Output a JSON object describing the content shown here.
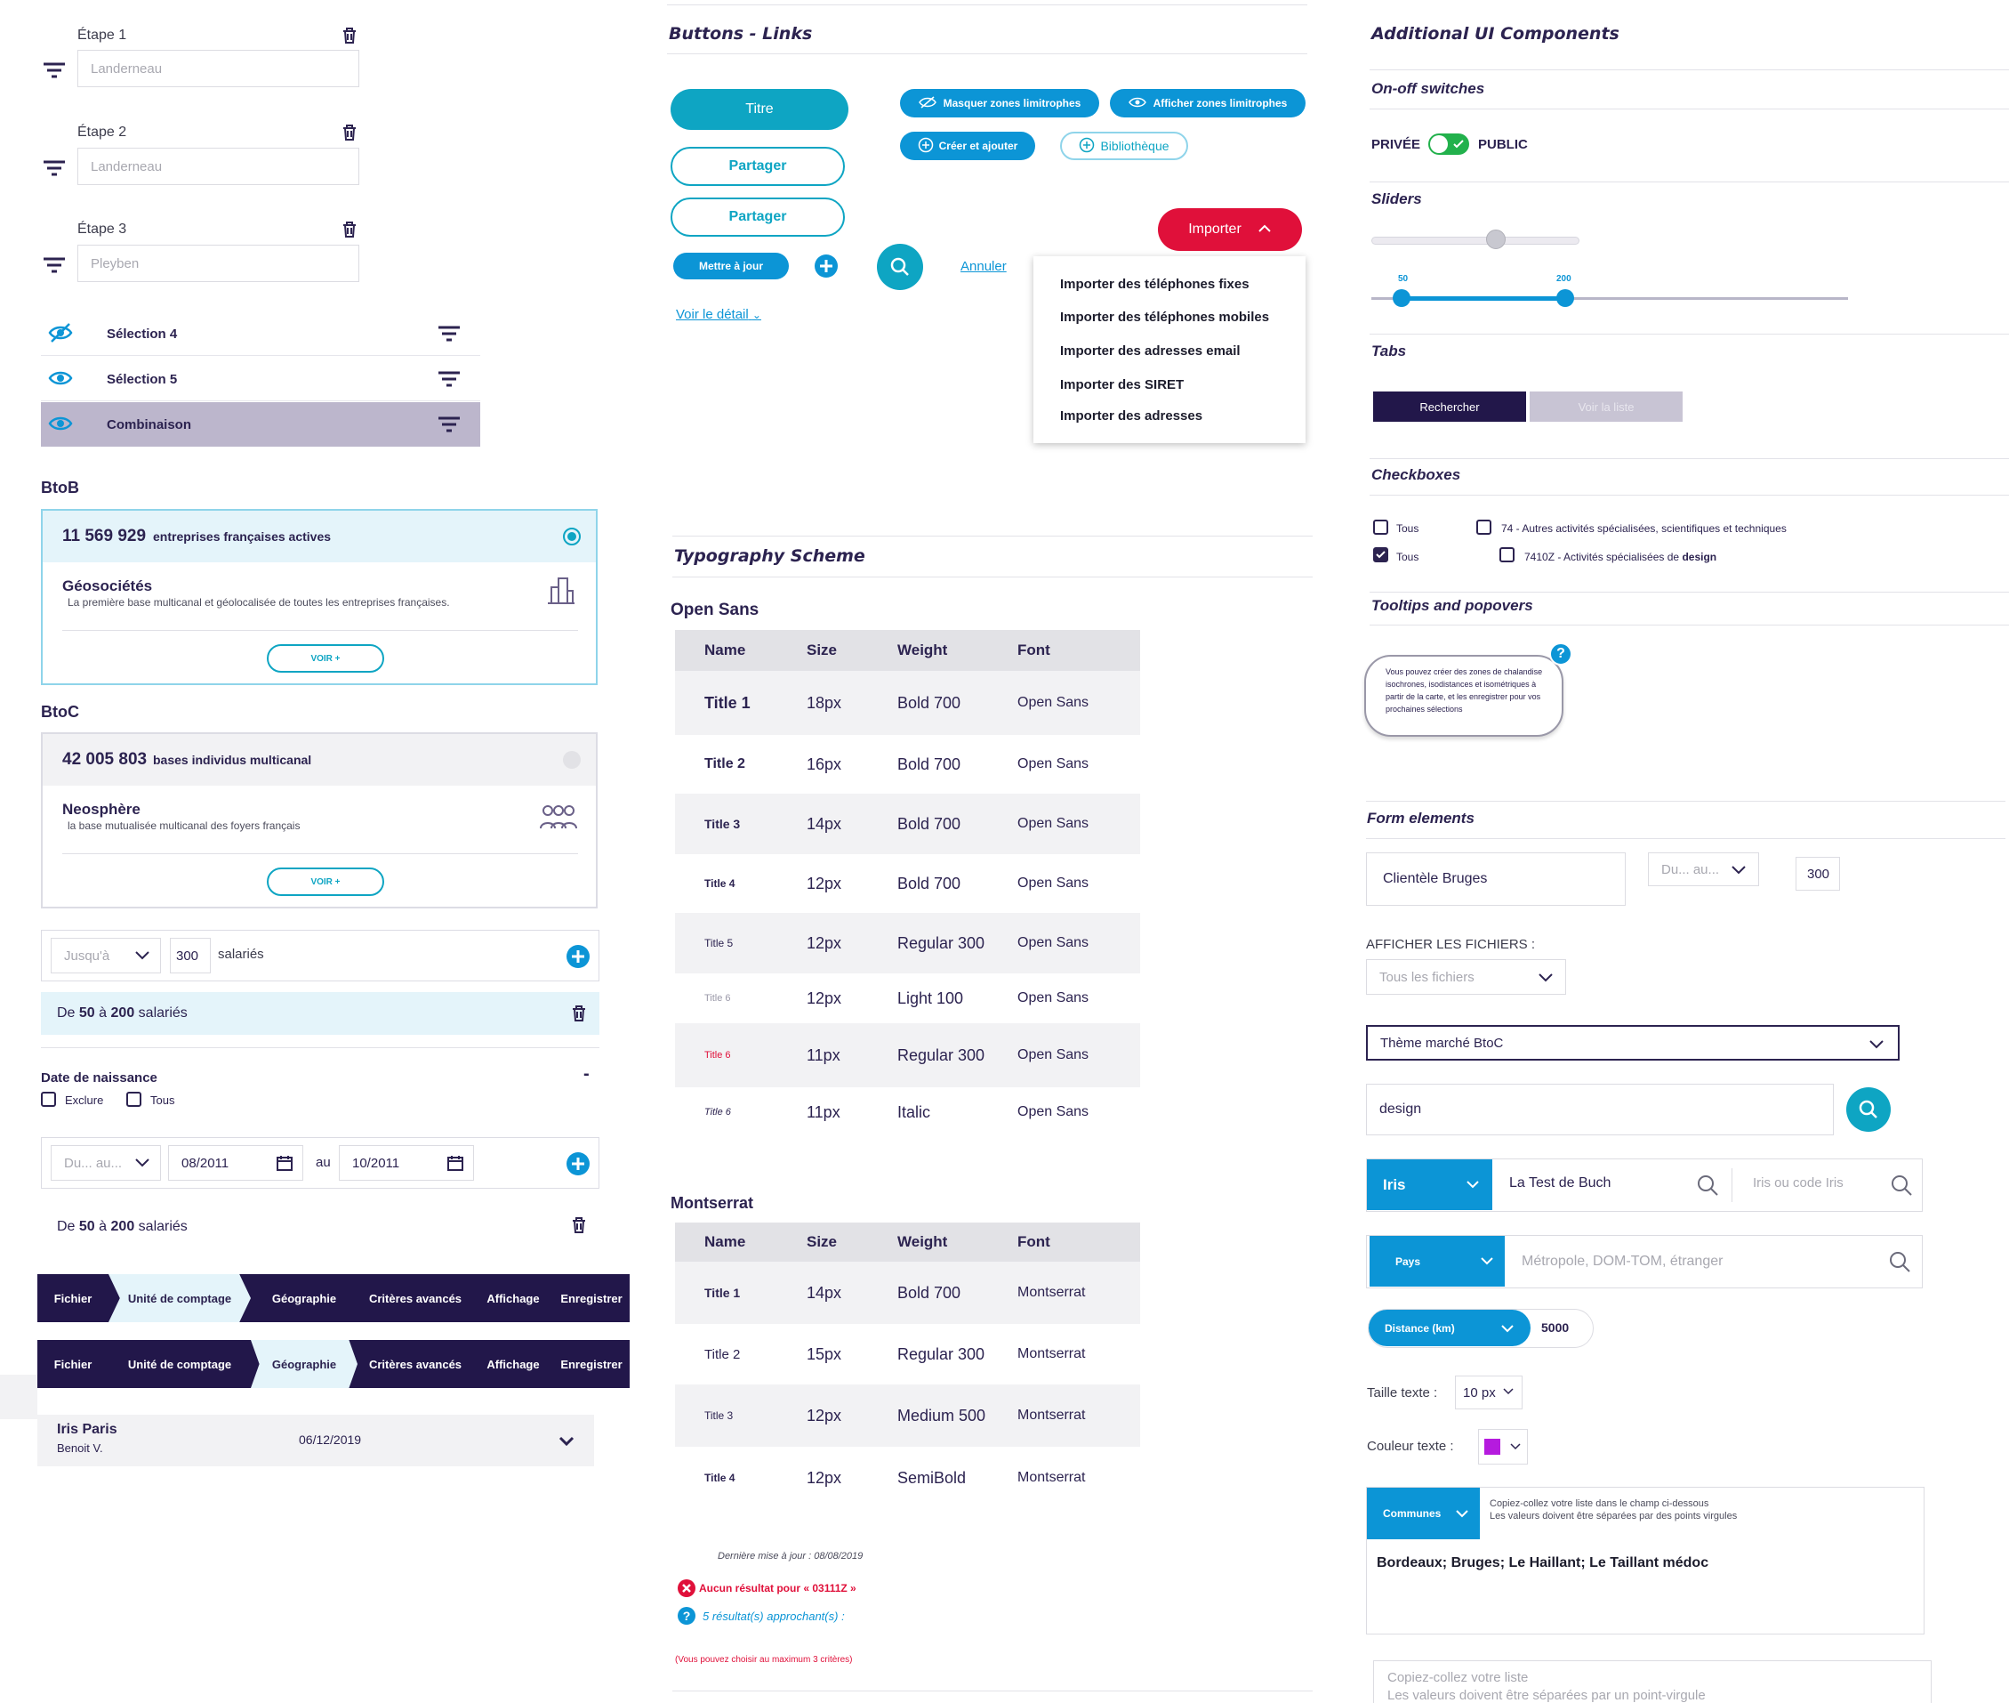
{
  "colors": {
    "navy": "#2c2350",
    "teal": "#0ea5c3",
    "blue": "#0c95d6",
    "red": "#e0103a",
    "lilac": "#bcb6cc",
    "purple_swatch": "#b51bde"
  },
  "left": {
    "steps": [
      {
        "label": "Étape 1",
        "value": "Landerneau"
      },
      {
        "label": "Étape 2",
        "value": "Landerneau"
      },
      {
        "label": "Étape 3",
        "value": "Pleyben"
      }
    ],
    "selections": [
      {
        "label": "Sélection 4",
        "icon": "eye-off-icon"
      },
      {
        "label": "Sélection 5",
        "icon": "eye-icon"
      },
      {
        "label": "Combinaison",
        "icon": "eye-icon"
      }
    ],
    "btob": {
      "heading": "BtoB",
      "count": "11 569 929",
      "count_label": "entreprises françaises actives",
      "name": "Géosociétés",
      "desc": "La première base multicanal et géolocalisée de toutes les entreprises françaises.",
      "button": "VOIR +"
    },
    "btoc": {
      "heading": "BtoC",
      "count": "42 005 803",
      "count_label": "bases individus multicanal",
      "name": "Neosphère",
      "desc": "la base mutualisée multicanal des foyers français",
      "button": "VOIR +"
    },
    "employees": {
      "select": "Jusqu'à",
      "value": "300",
      "unit": "salariés",
      "result_pre": "De",
      "result_a": "50",
      "result_mid": "à",
      "result_b": "200",
      "result_post": "salariés"
    },
    "birth": {
      "title": "Date de naissance",
      "minus": "-",
      "exclude": "Exclure",
      "all": "Tous",
      "select": "Du... au...",
      "from": "08/2011",
      "au": "au",
      "to": "10/2011",
      "result_pre": "De",
      "result_a": "50",
      "result_mid": "à",
      "result_b": "200",
      "result_post": "salariés"
    },
    "stepper": [
      "Fichier",
      "Unité de comptage",
      "Géographie",
      "Critères avancés",
      "Affichage",
      "Enregistrer"
    ],
    "iris": {
      "name": "Iris Paris",
      "author": "Benoit V.",
      "date": "06/12/2019"
    }
  },
  "mid": {
    "heading": "Buttons - Links",
    "btn_title": "Titre",
    "btn_share1": "Partager",
    "btn_share2": "Partager",
    "btn_update": "Mettre à jour",
    "btn_hide_zones": "Masquer zones limitrophes",
    "btn_show_zones": "Afficher zones limitrophes",
    "btn_create": "Créer et ajouter",
    "btn_library": "Bibliothèque",
    "link_cancel": "Annuler",
    "link_detail": "Voir le détail",
    "btn_import": "Importer",
    "import_menu": [
      "Importer des téléphones fixes",
      "Importer des téléphones mobiles",
      "Importer des adresses email",
      "Importer des SIRET",
      "Importer des adresses"
    ],
    "typo_heading": "Typography Scheme",
    "opensans_heading": "Open Sans",
    "montserrat_heading": "Montserrat",
    "cols": [
      "Name",
      "Size",
      "Weight",
      "Font"
    ],
    "opensans_rows": [
      [
        "Title 1",
        "18px",
        "Bold 700",
        "Open Sans"
      ],
      [
        "Title 2",
        "16px",
        "Bold 700",
        "Open Sans"
      ],
      [
        "Title 3",
        "14px",
        "Bold 700",
        "Open Sans"
      ],
      [
        "Title 4",
        "12px",
        "Bold 700",
        "Open Sans"
      ],
      [
        "Title 5",
        "12px",
        "Regular 300",
        "Open Sans"
      ],
      [
        "Title 6",
        "12px",
        "Light 100",
        "Open Sans"
      ],
      [
        "Title 6",
        "11px",
        "Regular 300",
        "Open Sans"
      ],
      [
        "Title 6",
        "11px",
        "Italic",
        "Open Sans"
      ]
    ],
    "montserrat_rows": [
      [
        "Title 1",
        "14px",
        "Bold 700",
        "Montserrat"
      ],
      [
        "Title 2",
        "15px",
        "Regular 300",
        "Montserrat"
      ],
      [
        "Title 3",
        "12px",
        "Medium 500",
        "Montserrat"
      ],
      [
        "Title 4",
        "12px",
        "SemiBold",
        "Montserrat"
      ]
    ],
    "last_update": "Dernière mise à jour : 08/08/2019",
    "no_result": "Aucun résultat pour « 03111Z »",
    "approx": "5 résultat(s) approchant(s) :",
    "max_criteria": "(Vous pouvez choisir au maximum 3 critères)"
  },
  "right": {
    "heading": "Additional UI Components",
    "switch_title": "On-off switches",
    "switch_left": "PRIVÉE",
    "switch_right": "PUBLIC",
    "sliders_title": "Sliders",
    "slider1_value": 0.6,
    "range_min": "50",
    "range_max": "200",
    "tabs_title": "Tabs",
    "tab_active": "Rechercher",
    "tab_inactive": "Voir la liste",
    "checkbox_title": "Checkboxes",
    "cb_all1": "Tous",
    "cb_all2": "Tous",
    "cb_item1": "74 - Autres activités spécialisées, scientifiques et techniques",
    "cb_item2_pre": "7410Z - Activités spécialisées de",
    "cb_item2_bold": "design",
    "tooltip_title": "Tooltips and popovers",
    "tooltip_text": "Vous pouvez créer des zones de chalandise isochrones, isodistances et isométriques à partir de la carte, et les enregistrer pour vos prochaines sélections",
    "tooltip_q": "?",
    "form_title": "Form elements",
    "client_value": "Clientèle Bruges",
    "range_select": "Du... au...",
    "num_value": "300",
    "files_label": "AFFICHER LES FICHIERS :",
    "files_select": "Tous les fichiers",
    "theme_select": "Thème marché BtoC",
    "search_value": "design",
    "iris_select": "Iris",
    "iris_value": "La Test de Buch",
    "iris_placeholder": "Iris ou code Iris",
    "pays_select": "Pays",
    "pays_placeholder": "Métropole, DOM-TOM, étranger",
    "distance_select": "Distance (km)",
    "distance_value": "5000",
    "text_size_label": "Taille texte :",
    "text_size_value": "10 px",
    "text_color_label": "Couleur texte :",
    "communes_select": "Communes",
    "communes_hint1": "Copiez-collez votre liste dans le champ ci-dessous",
    "communes_hint2": "Les valeurs doivent être séparées par des points virgules",
    "communes_value": "Bordeaux; Bruges; Le Haillant; Le Taillant médoc",
    "paste_ph1": "Copiez-collez votre liste",
    "paste_ph2": "Les valeurs doivent être séparées par un point-virgule"
  }
}
